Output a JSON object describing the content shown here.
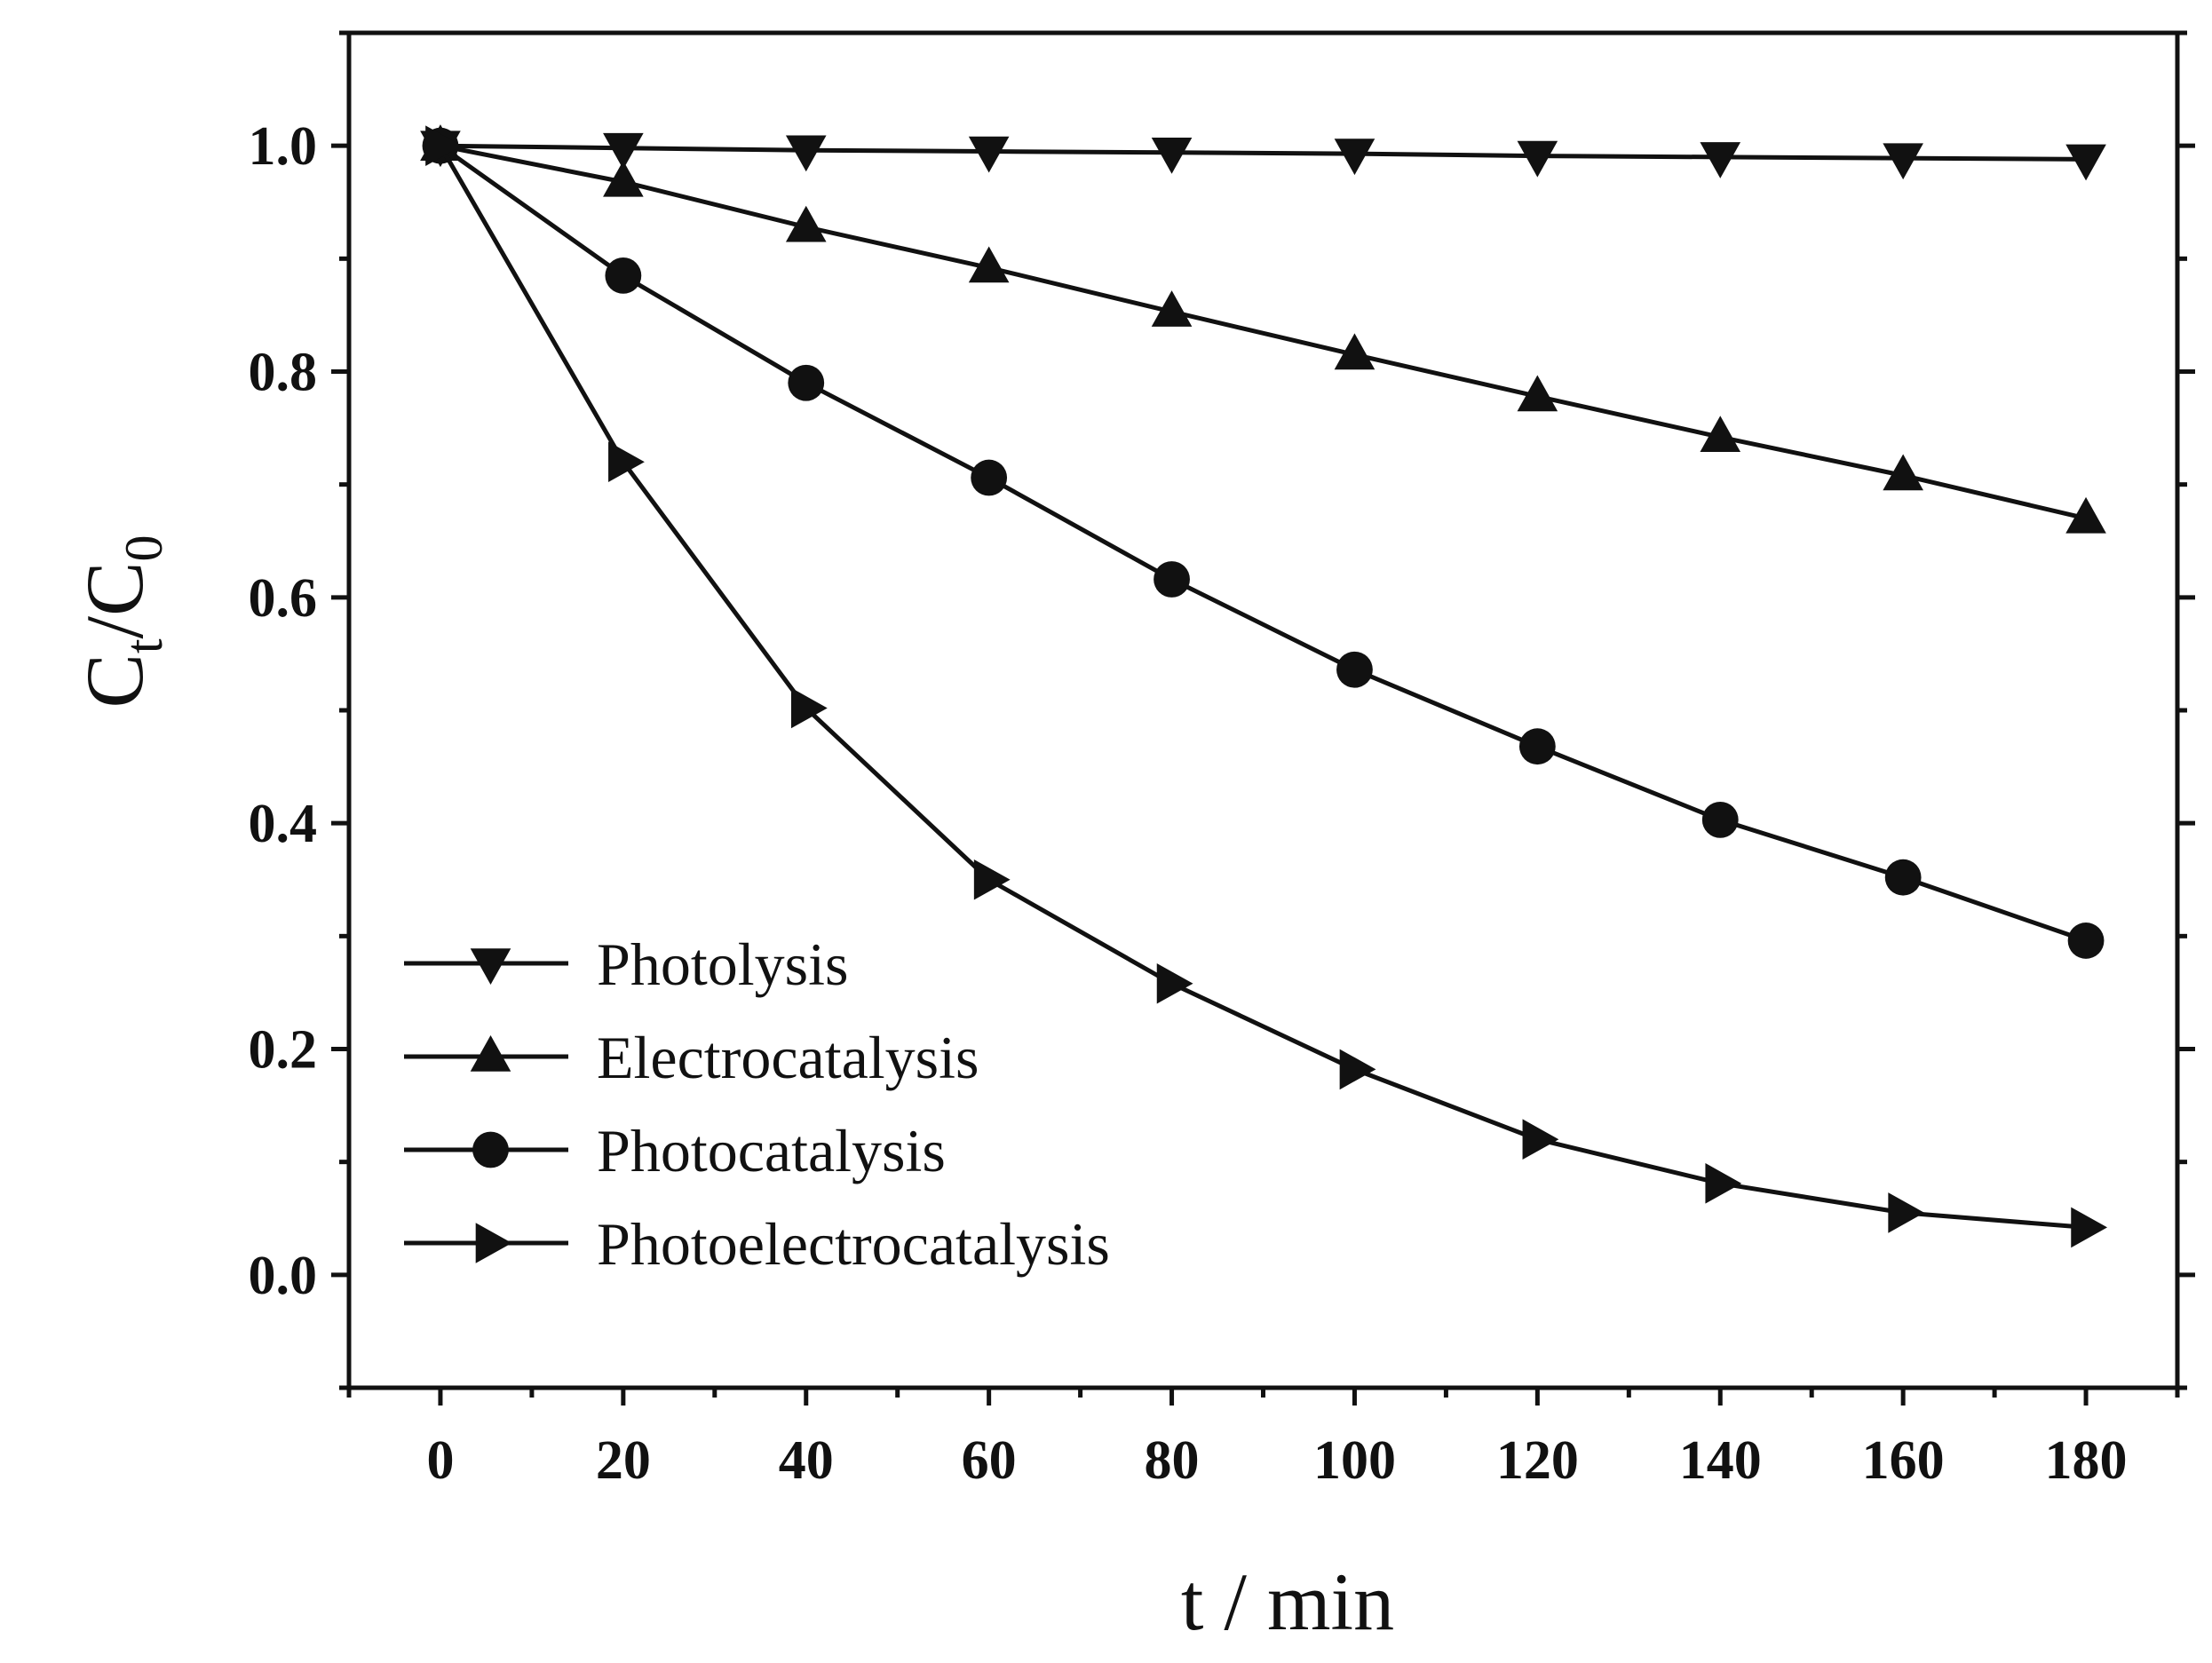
{
  "chart_data": {
    "type": "line",
    "xlabel": "t / min",
    "ylabel_main": "C",
    "ylabel_sub1": "t",
    "ylabel_sep": "/C",
    "ylabel_sub2": "0",
    "xlim": [
      -10,
      190
    ],
    "ylim": [
      -0.1,
      1.1
    ],
    "xticks": [
      0,
      20,
      40,
      60,
      80,
      100,
      120,
      140,
      160,
      180
    ],
    "xtick_labels": [
      "0",
      "20",
      "40",
      "60",
      "80",
      "100",
      "120",
      "140",
      "160",
      "180"
    ],
    "yticks": [
      0.0,
      0.2,
      0.4,
      0.6,
      0.8,
      1.0
    ],
    "ytick_labels": [
      "0.0",
      "0.2",
      "0.4",
      "0.6",
      "0.8",
      "1.0"
    ],
    "grid": false,
    "legend_position": "lower-left",
    "x": [
      0,
      20,
      40,
      60,
      80,
      100,
      120,
      140,
      160,
      180
    ],
    "series": [
      {
        "name": "Photolysis",
        "marker": "triangle-down",
        "values": [
          1.0,
          0.998,
          0.996,
          0.995,
          0.994,
          0.993,
          0.991,
          0.99,
          0.989,
          0.988
        ]
      },
      {
        "name": "Electrocatalysis",
        "marker": "triangle-up",
        "values": [
          1.0,
          0.968,
          0.928,
          0.892,
          0.853,
          0.815,
          0.778,
          0.742,
          0.708,
          0.67
        ]
      },
      {
        "name": "Photocatalysis",
        "marker": "circle",
        "values": [
          1.0,
          0.885,
          0.79,
          0.706,
          0.616,
          0.536,
          0.468,
          0.403,
          0.352,
          0.296
        ]
      },
      {
        "name": "Photoelectrocatalysis",
        "marker": "triangle-right",
        "values": [
          1.0,
          0.72,
          0.502,
          0.35,
          0.258,
          0.182,
          0.12,
          0.081,
          0.055,
          0.042
        ]
      }
    ],
    "colors": {
      "line": "#111111",
      "marker": "#111111",
      "axis": "#111111"
    }
  }
}
